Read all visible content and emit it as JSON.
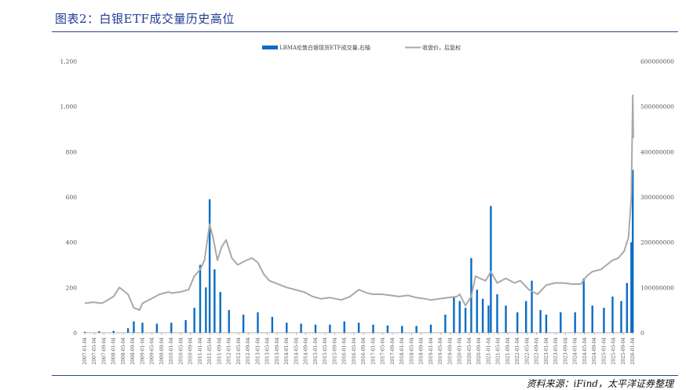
{
  "header": {
    "title": "图表2：白银ETF成交量历史高位",
    "source": "资料来源：iFind，太平洋证券整理"
  },
  "chart_data": {
    "type": "bar+line",
    "title": "图表2：白银ETF成交量历史高位",
    "legend_position": "top-center",
    "grid": false,
    "x_ticks": [
      "2007-01-04",
      "2007-05-04",
      "2007-09-04",
      "2008-01-04",
      "2008-05-04",
      "2008-09-04",
      "2009-01-04",
      "2009-05-04",
      "2009-09-04",
      "2010-01-04",
      "2010-05-04",
      "2010-09-04",
      "2011-01-04",
      "2011-05-04",
      "2011-09-04",
      "2012-01-04",
      "2012-05-04",
      "2012-09-04",
      "2013-01-04",
      "2013-05-04",
      "2013-09-04",
      "2014-01-04",
      "2014-05-04",
      "2014-09-04",
      "2015-01-04",
      "2015-05-04",
      "2015-09-04",
      "2016-01-04",
      "2016-05-04",
      "2016-09-04",
      "2017-01-04",
      "2017-05-04",
      "2017-09-04",
      "2018-01-04",
      "2018-05-04",
      "2018-09-04",
      "2019-01-04",
      "2019-05-04",
      "2019-09-04",
      "2020-01-04",
      "2020-05-04",
      "2020-09-04",
      "2021-01-04",
      "2021-05-04",
      "2021-09-04",
      "2022-01-04",
      "2022-05-04",
      "2022-09-04",
      "2023-01-04",
      "2023-05-04",
      "2023-09-04",
      "2024-01-04",
      "2024-05-04",
      "2024-09-04",
      "2025-01-04",
      "2025-05-04",
      "2025-09-04",
      "2026-01-04"
    ],
    "y_left": {
      "ticks": [
        "0",
        "200",
        "400",
        "600",
        "800",
        "1,000",
        "1,200"
      ],
      "ylim": [
        0,
        1200
      ]
    },
    "y_right": {
      "ticks": [
        "0",
        "100000000",
        "200000000",
        "300000000",
        "400000000",
        "500000000",
        "600000000"
      ],
      "ylim": [
        0,
        600000000
      ]
    },
    "series": [
      {
        "name": "LBMA伦敦白银现货ETF成交量,右轴",
        "type": "bar",
        "axis": "right",
        "color": "#0a6cc4",
        "x": [
          2007.0,
          2007.5,
          2008.0,
          2008.5,
          2008.7,
          2009.0,
          2009.5,
          2010.0,
          2010.5,
          2010.8,
          2011.0,
          2011.2,
          2011.33,
          2011.5,
          2011.7,
          2012.0,
          2012.5,
          2013.0,
          2013.5,
          2014.0,
          2014.5,
          2015.0,
          2015.5,
          2016.0,
          2016.5,
          2017.0,
          2017.5,
          2018.0,
          2018.5,
          2019.0,
          2019.5,
          2019.8,
          2020.0,
          2020.2,
          2020.4,
          2020.6,
          2020.8,
          2021.0,
          2021.08,
          2021.3,
          2021.6,
          2022.0,
          2022.3,
          2022.5,
          2022.8,
          2023.0,
          2023.5,
          2024.0,
          2024.3,
          2024.6,
          2025.0,
          2025.3,
          2025.6,
          2025.8,
          2025.95,
          2026.0
        ],
        "values": [
          2000000,
          3000000,
          4000000,
          10000000,
          25000000,
          22000000,
          20000000,
          22000000,
          28000000,
          55000000,
          150000000,
          100000000,
          295000000,
          140000000,
          90000000,
          50000000,
          40000000,
          45000000,
          35000000,
          22000000,
          20000000,
          18000000,
          18000000,
          25000000,
          22000000,
          18000000,
          16000000,
          15000000,
          15000000,
          18000000,
          40000000,
          80000000,
          70000000,
          55000000,
          165000000,
          95000000,
          75000000,
          60000000,
          280000000,
          85000000,
          60000000,
          45000000,
          70000000,
          115000000,
          50000000,
          40000000,
          45000000,
          45000000,
          120000000,
          60000000,
          55000000,
          80000000,
          70000000,
          110000000,
          200000000,
          360000000
        ]
      },
      {
        "name": "收盘价，后复权",
        "type": "line",
        "axis": "left",
        "color": "#a9a9a9",
        "x": [
          2007.0,
          2007.3,
          2007.6,
          2008.0,
          2008.2,
          2008.5,
          2008.7,
          2008.9,
          2009.0,
          2009.3,
          2009.6,
          2009.9,
          2010.0,
          2010.3,
          2010.6,
          2010.8,
          2011.0,
          2011.15,
          2011.33,
          2011.45,
          2011.6,
          2011.75,
          2011.9,
          2012.1,
          2012.3,
          2012.6,
          2012.8,
          2013.0,
          2013.2,
          2013.4,
          2013.6,
          2013.8,
          2014.0,
          2014.3,
          2014.6,
          2014.9,
          2015.2,
          2015.5,
          2015.9,
          2016.2,
          2016.5,
          2016.8,
          2017.0,
          2017.3,
          2017.6,
          2017.9,
          2018.2,
          2018.5,
          2018.8,
          2019.0,
          2019.3,
          2019.6,
          2019.9,
          2020.0,
          2020.2,
          2020.4,
          2020.55,
          2020.7,
          2020.9,
          2021.08,
          2021.3,
          2021.6,
          2021.9,
          2022.1,
          2022.4,
          2022.7,
          2023.0,
          2023.3,
          2023.6,
          2023.9,
          2024.2,
          2024.4,
          2024.6,
          2024.9,
          2025.1,
          2025.3,
          2025.5,
          2025.7,
          2025.85,
          2025.95,
          2026.0,
          2026.02
        ],
        "values": [
          130,
          135,
          130,
          160,
          200,
          170,
          110,
          100,
          130,
          150,
          170,
          180,
          175,
          180,
          190,
          250,
          280,
          320,
          480,
          420,
          320,
          380,
          410,
          330,
          300,
          320,
          330,
          310,
          260,
          230,
          220,
          210,
          200,
          190,
          180,
          160,
          150,
          155,
          145,
          160,
          190,
          175,
          170,
          170,
          165,
          160,
          165,
          155,
          150,
          145,
          150,
          155,
          160,
          170,
          120,
          160,
          250,
          240,
          230,
          270,
          220,
          240,
          220,
          230,
          190,
          170,
          210,
          220,
          220,
          215,
          215,
          250,
          270,
          280,
          300,
          320,
          330,
          360,
          420,
          600,
          1050,
          860
        ]
      }
    ]
  }
}
